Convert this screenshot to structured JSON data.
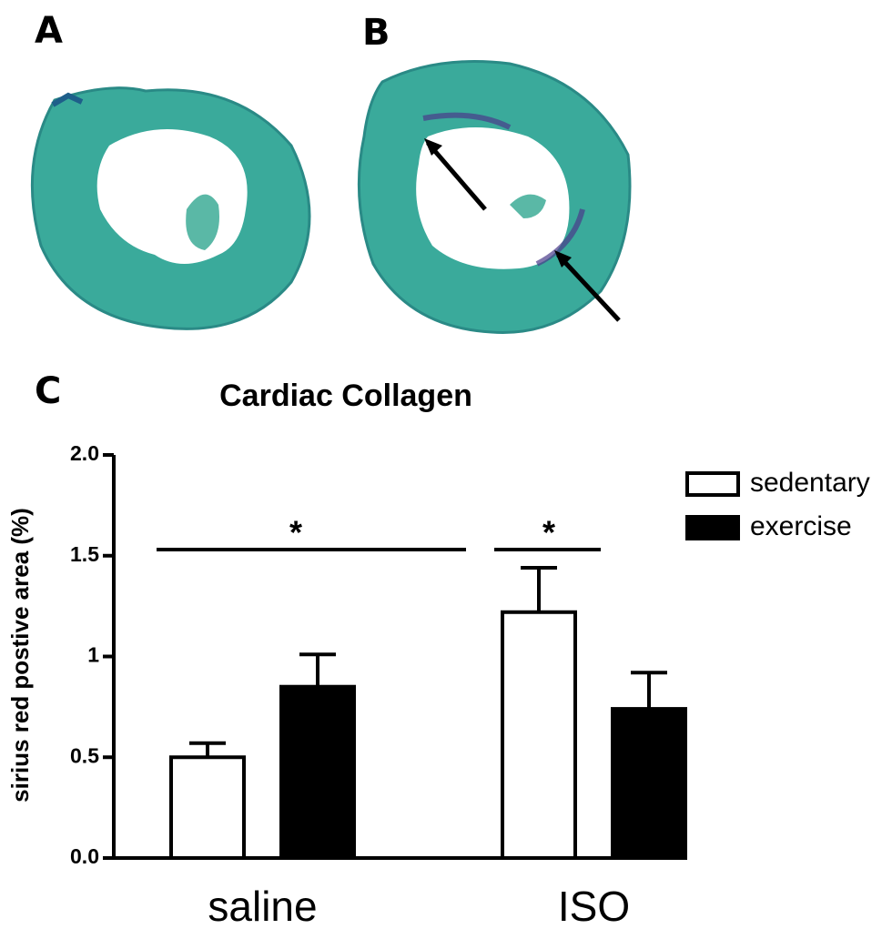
{
  "panel_labels": [
    "A",
    "B",
    "C"
  ],
  "chart_data": {
    "type": "bar",
    "title": "Cardiac Collagen",
    "y_label": "sirius red postive area (%)",
    "categories": [
      "saline",
      "ISO"
    ],
    "series": [
      {
        "name": "sedentary",
        "color": "#ffffff",
        "values": [
          0.5,
          1.22
        ],
        "errors": [
          0.07,
          0.22
        ]
      },
      {
        "name": "exercise",
        "color": "#000000",
        "values": [
          0.85,
          0.74
        ],
        "errors": [
          0.16,
          0.18
        ]
      }
    ],
    "ylim": [
      0,
      2
    ],
    "yticks": [
      {
        "value": 0,
        "label": "0.0"
      },
      0.5,
      1.0,
      1.5,
      {
        "value": 2,
        "label": "2.0"
      }
    ],
    "annotations": [
      "*",
      "*"
    ],
    "legend": "right"
  }
}
